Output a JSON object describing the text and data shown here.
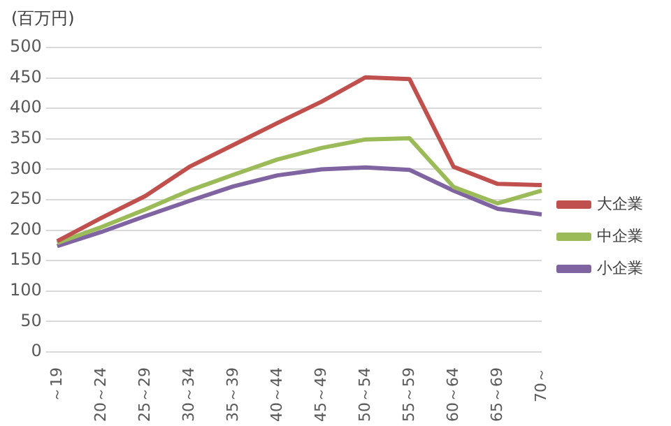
{
  "chart_data": {
    "type": "line",
    "ylabel": "(百万円)",
    "categories": [
      "～19",
      "20～24",
      "25～29",
      "30～34",
      "35～39",
      "40～44",
      "45～49",
      "50～54",
      "55～59",
      "60～64",
      "65～69",
      "70～"
    ],
    "series": [
      {
        "name": "大企業",
        "color": "#c0504d",
        "values": [
          182,
          220,
          256,
          304,
          340,
          376,
          411,
          451,
          448,
          304,
          276,
          274
        ]
      },
      {
        "name": "中企業",
        "color": "#9bbb59",
        "values": [
          179,
          205,
          234,
          265,
          291,
          316,
          335,
          349,
          351,
          271,
          244,
          265
        ]
      },
      {
        "name": "小企業",
        "color": "#8064a2",
        "values": [
          174,
          197,
          223,
          248,
          272,
          290,
          300,
          303,
          299,
          265,
          235,
          226
        ]
      }
    ],
    "ylim": [
      0,
      500
    ],
    "yticks": [
      0,
      50,
      100,
      150,
      200,
      250,
      300,
      350,
      400,
      450,
      500
    ],
    "grid": "y",
    "legend": "right",
    "marker": "none",
    "line_style": "solid"
  }
}
